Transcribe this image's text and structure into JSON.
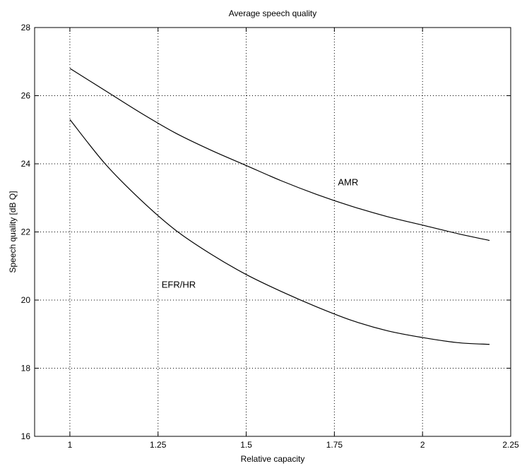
{
  "chart_data": {
    "type": "line",
    "title": "Average speech quality",
    "xlabel": "Relative capacity",
    "ylabel": "Speech quality [dB Q]",
    "xlim": [
      0.9,
      2.25
    ],
    "ylim": [
      16,
      28
    ],
    "xticks": [
      1,
      1.25,
      1.5,
      1.75,
      2,
      2.25
    ],
    "xtick_labels": [
      "1",
      "1.25",
      "1.5",
      "1.75",
      "2",
      "2.25"
    ],
    "yticks": [
      16,
      18,
      20,
      22,
      24,
      26,
      28
    ],
    "ytick_labels": [
      "16",
      "18",
      "20",
      "22",
      "24",
      "26",
      "28"
    ],
    "grid": true,
    "grid_style": "dotted",
    "series": [
      {
        "name": "AMR",
        "color": "#000000",
        "x": [
          1.0,
          1.1,
          1.2,
          1.3,
          1.4,
          1.5,
          1.6,
          1.7,
          1.8,
          1.9,
          2.0,
          2.1,
          2.19
        ],
        "y": [
          26.8,
          26.15,
          25.5,
          24.9,
          24.4,
          23.95,
          23.5,
          23.1,
          22.75,
          22.45,
          22.2,
          21.95,
          21.75
        ]
      },
      {
        "name": "EFR/HR",
        "color": "#000000",
        "x": [
          1.0,
          1.1,
          1.2,
          1.3,
          1.4,
          1.5,
          1.6,
          1.7,
          1.8,
          1.9,
          2.0,
          2.1,
          2.19
        ],
        "y": [
          25.3,
          24.0,
          22.95,
          22.05,
          21.35,
          20.75,
          20.25,
          19.8,
          19.4,
          19.1,
          18.9,
          18.75,
          18.7
        ]
      }
    ],
    "annotations": [
      {
        "text": "AMR",
        "x": 1.76,
        "y": 23.45
      },
      {
        "text": "EFR/HR",
        "x": 1.26,
        "y": 20.45
      }
    ]
  }
}
